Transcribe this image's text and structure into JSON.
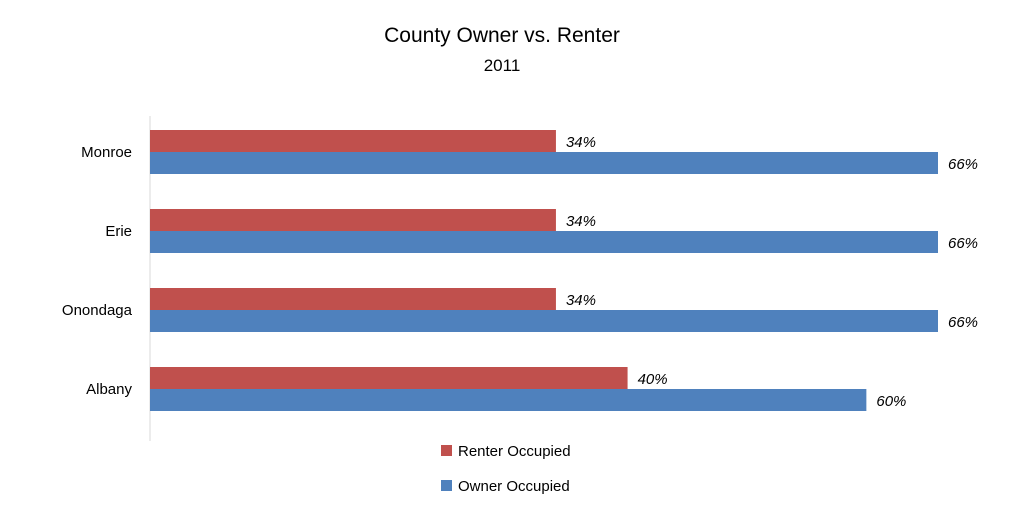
{
  "chart_data": {
    "type": "bar",
    "orientation": "horizontal",
    "title": "County Owner vs. Renter",
    "subtitle": "2011",
    "categories": [
      "Monroe",
      "Erie",
      "Onondaga",
      "Albany"
    ],
    "series": [
      {
        "name": "Renter Occupied",
        "color": "#C0504D",
        "values": [
          34,
          34,
          34,
          40
        ],
        "labels": [
          "34%",
          "34%",
          "34%",
          "40%"
        ]
      },
      {
        "name": "Owner Occupied",
        "color": "#4F81BD",
        "values": [
          66,
          66,
          66,
          60
        ],
        "labels": [
          "66%",
          "66%",
          "66%",
          "60%"
        ]
      }
    ],
    "xlim": [
      0,
      66
    ],
    "grid": false,
    "legend_position": "bottom"
  }
}
